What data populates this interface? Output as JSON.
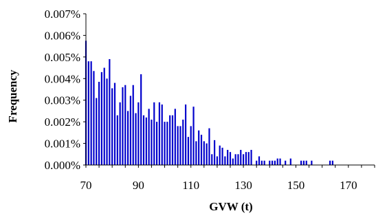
{
  "chart_data": {
    "type": "bar",
    "title": "",
    "xlabel": "GVW (t)",
    "ylabel": "Frequency",
    "xlim": [
      70,
      180
    ],
    "ylim": [
      0,
      0.007
    ],
    "x_ticks": [
      70,
      90,
      110,
      130,
      150,
      170
    ],
    "x_tick_labels": [
      "70",
      "90",
      "110",
      "130",
      "150",
      "170"
    ],
    "y_ticks": [
      0,
      0.001,
      0.002,
      0.003,
      0.004,
      0.005,
      0.006,
      0.007
    ],
    "y_tick_labels": [
      "0.000%",
      "0.001%",
      "0.002%",
      "0.003%",
      "0.004%",
      "0.005%",
      "0.006%",
      "0.007%"
    ],
    "bar_color": "#0000cc",
    "x": [
      70,
      71,
      72,
      73,
      74,
      75,
      76,
      77,
      78,
      79,
      80,
      81,
      82,
      83,
      84,
      85,
      86,
      87,
      88,
      89,
      90,
      91,
      92,
      93,
      94,
      95,
      96,
      97,
      98,
      99,
      100,
      101,
      102,
      103,
      104,
      105,
      106,
      107,
      108,
      109,
      110,
      111,
      112,
      113,
      114,
      115,
      116,
      117,
      118,
      119,
      120,
      121,
      122,
      123,
      124,
      125,
      126,
      127,
      128,
      129,
      130,
      131,
      132,
      133,
      134,
      135,
      136,
      137,
      138,
      139,
      140,
      141,
      142,
      143,
      144,
      145,
      146,
      147,
      148,
      149,
      150,
      151,
      152,
      153,
      154,
      155,
      156,
      157,
      158,
      159,
      160,
      161,
      162,
      163,
      164
    ],
    "values": [
      0.00575,
      0.0048,
      0.0048,
      0.00435,
      0.0031,
      0.00385,
      0.0043,
      0.0045,
      0.004,
      0.0049,
      0.00355,
      0.0038,
      0.0023,
      0.0029,
      0.0036,
      0.0037,
      0.0025,
      0.0032,
      0.0037,
      0.0024,
      0.0029,
      0.0042,
      0.0023,
      0.0022,
      0.0026,
      0.0021,
      0.0029,
      0.002,
      0.0029,
      0.0028,
      0.002,
      0.002,
      0.0023,
      0.0023,
      0.0026,
      0.0018,
      0.0018,
      0.0021,
      0.0028,
      0.0013,
      0.0018,
      0.0027,
      0.0011,
      0.0016,
      0.0014,
      0.0011,
      0.001,
      0.0017,
      0.0005,
      0.00115,
      0.0004,
      0.0009,
      0.0008,
      0.0004,
      0.0007,
      0.0006,
      0.0003,
      0.0005,
      0.0005,
      0.0007,
      0.0005,
      0.0006,
      0.0006,
      0.0007,
      0.0,
      0.0002,
      0.0004,
      0.0002,
      0.0002,
      0.0,
      0.0002,
      0.0002,
      0.0002,
      0.0003,
      0.0003,
      0.0,
      0.0002,
      0.0,
      0.0003,
      0.0,
      0.0,
      0.0,
      0.0002,
      0.0002,
      0.0002,
      0.0,
      0.0002,
      0.0,
      0.0,
      0.0,
      0.0,
      0.0,
      0.0,
      0.0002,
      0.0002
    ]
  }
}
